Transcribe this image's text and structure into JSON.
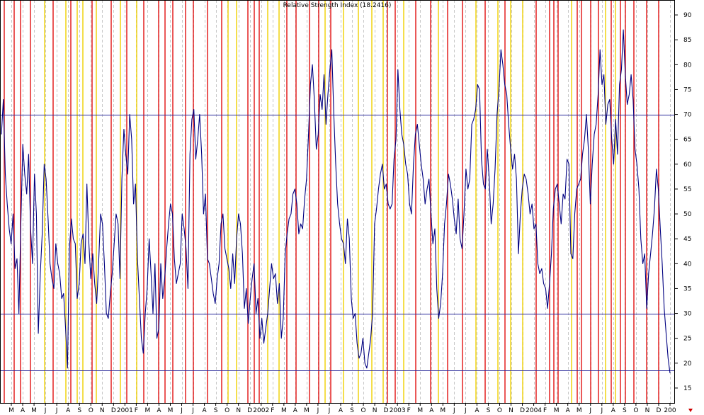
{
  "chart_data": {
    "type": "line",
    "title": "Relative Strength Index (18.2416)",
    "ylim": [
      12,
      93
    ],
    "yticks": [
      15,
      20,
      25,
      30,
      35,
      40,
      45,
      50,
      55,
      60,
      65,
      70,
      75,
      80,
      85,
      90
    ],
    "reference_lines": [
      70,
      30,
      18.5
    ],
    "x_tick_labels": [
      "M",
      "A",
      "M",
      "J",
      "J",
      "A",
      "S",
      "O",
      "N",
      "D",
      "2001",
      "F",
      "M",
      "A",
      "M",
      "J",
      "J",
      "A",
      "S",
      "O",
      "N",
      "D",
      "2002",
      "F",
      "M",
      "A",
      "M",
      "J",
      "J",
      "A",
      "S",
      "O",
      "N",
      "D",
      "2003",
      "F",
      "M",
      "A",
      "M",
      "J",
      "J",
      "A",
      "S",
      "O",
      "N",
      "D",
      "2004",
      "F",
      "M",
      "A",
      "M",
      "J",
      "J",
      "A",
      "S",
      "O",
      "N",
      "D",
      "200"
    ],
    "series": [
      {
        "color": "#000080",
        "x_start": "2000-02",
        "x_end": "2005-01",
        "values": [
          66,
          73,
          58,
          52,
          47,
          44,
          50,
          39,
          41,
          30,
          48,
          64,
          58,
          54,
          62,
          47,
          40,
          58,
          50,
          26,
          38,
          46,
          60,
          57,
          49,
          40,
          37,
          35,
          44,
          40,
          38,
          33,
          34,
          27,
          19,
          43,
          49,
          45,
          44,
          33,
          36,
          44,
          46,
          40,
          56,
          44,
          37,
          42,
          36,
          32,
          40,
          50,
          48,
          40,
          30,
          29,
          34,
          38,
          44,
          50,
          48,
          37,
          57,
          67,
          62,
          58,
          70,
          65,
          52,
          56,
          41,
          33,
          25,
          22,
          30,
          35,
          45,
          38,
          30,
          40,
          25,
          27,
          40,
          33,
          37,
          43,
          48,
          52,
          50,
          41,
          36,
          38,
          40,
          50,
          47,
          43,
          35,
          62,
          69,
          71,
          61,
          65,
          70,
          62,
          50,
          54,
          41,
          40,
          37,
          34,
          32,
          37,
          40,
          48,
          50,
          43,
          41,
          39,
          35,
          42,
          36,
          45,
          50,
          48,
          42,
          31,
          35,
          28,
          33,
          37,
          40,
          30,
          33,
          25,
          29,
          24,
          27,
          30,
          35,
          40,
          37,
          38,
          32,
          36,
          25,
          29,
          42,
          46,
          49,
          50,
          54,
          55,
          52,
          46,
          48,
          47,
          53,
          57,
          66,
          76,
          80,
          73,
          63,
          66,
          74,
          71,
          78,
          68,
          74,
          79,
          83,
          70,
          60,
          52,
          48,
          45,
          44,
          40,
          49,
          45,
          33,
          29,
          30,
          24,
          21,
          22,
          25,
          20,
          19,
          22,
          25,
          30,
          48,
          51,
          55,
          58,
          60,
          55,
          56,
          52,
          51,
          52,
          61,
          65,
          79,
          71,
          66,
          64,
          60,
          58,
          52,
          50,
          60,
          66,
          68,
          64,
          60,
          57,
          52,
          55,
          57,
          50,
          44,
          47,
          35,
          29,
          32,
          38,
          48,
          52,
          58,
          56,
          53,
          49,
          46,
          53,
          45,
          43,
          50,
          59,
          55,
          57,
          68,
          69,
          71,
          76,
          75,
          61,
          56,
          55,
          63,
          57,
          48,
          52,
          59,
          70,
          75,
          83,
          80,
          76,
          74,
          68,
          63,
          59,
          62,
          57,
          42,
          50,
          55,
          58,
          57,
          54,
          50,
          52,
          47,
          48,
          40,
          38,
          39,
          36,
          35,
          31,
          36,
          42,
          51,
          55,
          56,
          52,
          48,
          54,
          53,
          61,
          60,
          42,
          41,
          50,
          55,
          56,
          57,
          62,
          65,
          70,
          63,
          52,
          60,
          66,
          68,
          74,
          83,
          76,
          78,
          68,
          72,
          73,
          65,
          60,
          69,
          62,
          76,
          79,
          87,
          78,
          72,
          74,
          78,
          73,
          63,
          60,
          55,
          45,
          40,
          42,
          31,
          38,
          42,
          46,
          51,
          59,
          55,
          47,
          40,
          31,
          26,
          21,
          18
        ]
      }
    ]
  }
}
